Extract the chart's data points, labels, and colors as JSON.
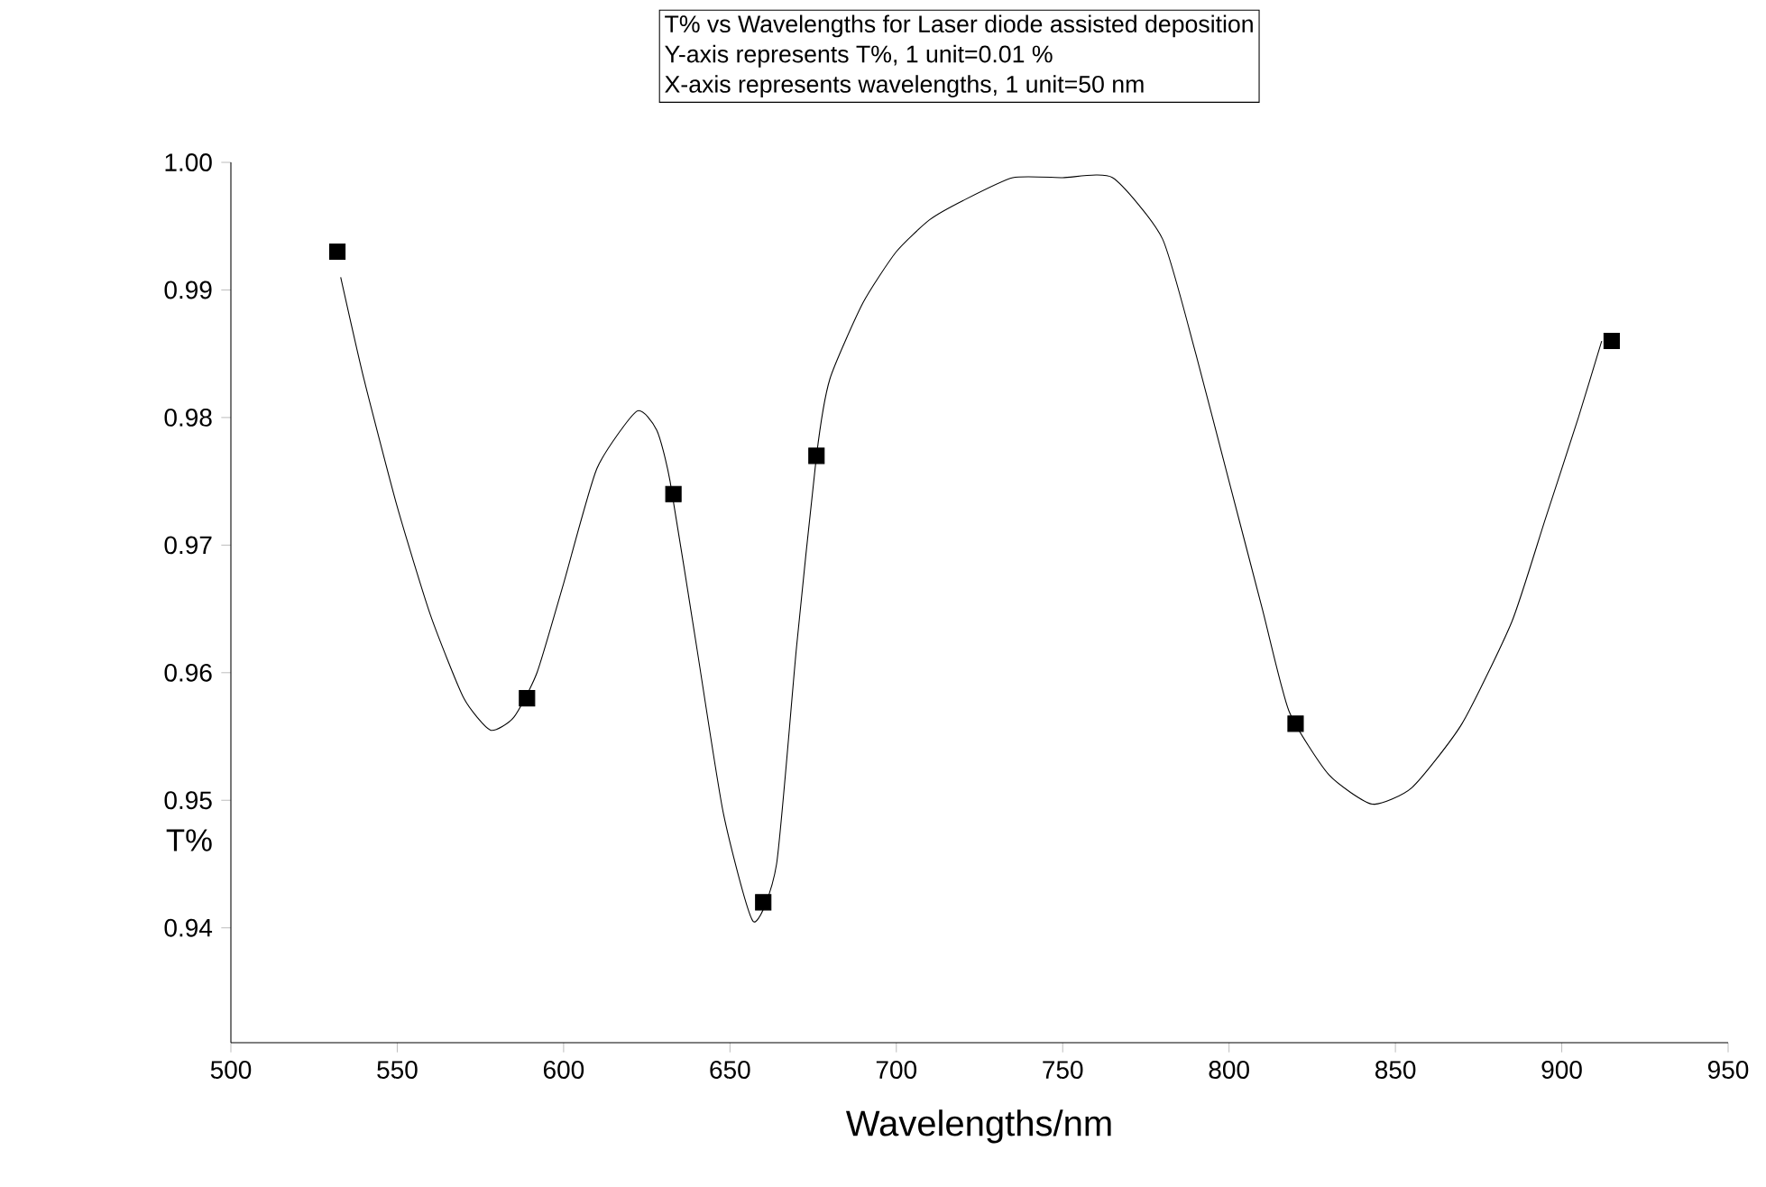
{
  "chart_data": {
    "type": "scatter",
    "xlabel": "Wavelengths/nm",
    "ylabel": "T%",
    "annotations": [
      "T% vs Wavelengths for Laser diode assisted deposition",
      "Y-axis represents T%, 1 unit=0.01 %",
      "X-axis represents wavelengths, 1 unit=50 nm"
    ],
    "xlim": [
      500,
      950
    ],
    "ylim": [
      0.931,
      1.0
    ],
    "xticks": [
      500,
      550,
      600,
      650,
      700,
      750,
      800,
      850,
      900,
      950
    ],
    "yticks": [
      0.94,
      0.95,
      0.96,
      0.97,
      0.98,
      0.99,
      {
        "value": 1.0,
        "label": "1.00"
      }
    ],
    "grid": false,
    "series": [
      {
        "marker": "square",
        "color": "#000000",
        "x": [
          532,
          589,
          633,
          660,
          676,
          820,
          915
        ],
        "values": [
          0.993,
          0.958,
          0.974,
          0.942,
          0.977,
          0.956,
          0.986
        ]
      },
      {
        "type": "line",
        "marker": "none",
        "line_style": "solid",
        "color": "#000000",
        "x": [
          533,
          540,
          550,
          560,
          570,
          578,
          585,
          592,
          600,
          610,
          622,
          628,
          632,
          640,
          648,
          657,
          664,
          670,
          676,
          680,
          690,
          700,
          710,
          720,
          735,
          750,
          765,
          780,
          790,
          800,
          810,
          818,
          830,
          843,
          855,
          870,
          885,
          895,
          905,
          912
        ],
        "values": [
          0.991,
          0.983,
          0.973,
          0.9645,
          0.958,
          0.9555,
          0.9565,
          0.96,
          0.967,
          0.976,
          0.9805,
          0.979,
          0.975,
          0.962,
          0.949,
          0.9405,
          0.945,
          0.962,
          0.977,
          0.983,
          0.989,
          0.993,
          0.9955,
          0.997,
          0.9988,
          0.9988,
          0.9988,
          0.994,
          0.985,
          0.975,
          0.965,
          0.957,
          0.952,
          0.9497,
          0.951,
          0.956,
          0.964,
          0.972,
          0.98,
          0.986
        ]
      }
    ]
  }
}
